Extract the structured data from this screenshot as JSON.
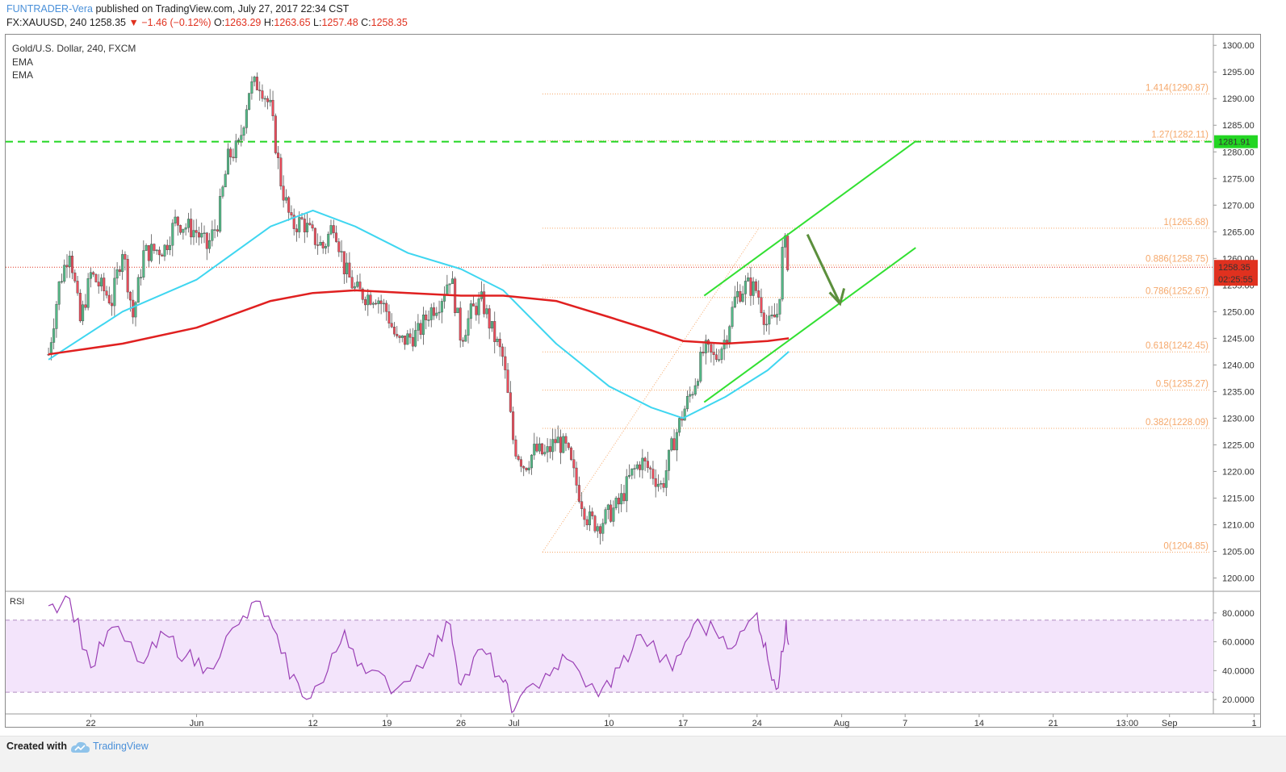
{
  "header": {
    "publisher": "FUNTRADER-Vera",
    "published_text": "published on TradingView.com, July 27, 2017 22:34 CST",
    "symbol": "FX:XAUUSD, 240",
    "last": "1258.35",
    "change": "▼ −1.46 (−0.12%)",
    "o_label": "O:",
    "o_value": "1263.29",
    "h_label": "H:",
    "h_value": "1263.65",
    "l_label": "L:",
    "l_value": "1257.48",
    "c_label": "C:",
    "c_value": "1258.35"
  },
  "legend": {
    "title": "Gold/U.S. Dollar, 240, FXCM",
    "ema1": "EMA",
    "ema2": "EMA"
  },
  "rsi_label": "RSI",
  "footer": {
    "created_with": "Created with",
    "brand": "TradingView"
  },
  "colors": {
    "up": "#53b987",
    "down": "#eb4d5c",
    "ema_fast": "#3fd6f0",
    "ema_slow": "#e02020",
    "channel": "#32e032",
    "resistance": "#22d622",
    "fib": "#f5a86b",
    "arrow": "#5b8f3c",
    "rsi": "#9a3fb5",
    "rsi_band": "#f3e4fb",
    "last_price_bg": "#e0311f"
  },
  "chart_data": [
    {
      "type": "candlestick",
      "title": "Gold/U.S. Dollar, 240, FXCM",
      "ylim": [
        1197.5,
        1302
      ],
      "y_ticks": [
        1200,
        1205,
        1210,
        1215,
        1220,
        1225,
        1230,
        1235,
        1240,
        1245,
        1250,
        1255,
        1260,
        1265,
        1270,
        1275,
        1280,
        1285,
        1290,
        1295,
        1300
      ],
      "x_tick_labels": [
        "22",
        "Jun",
        "12",
        "19",
        "26",
        "Jul",
        "10",
        "17",
        "24",
        "Aug",
        "7",
        "14",
        "21",
        "13:00",
        "Sep",
        "1"
      ],
      "price_path": [
        {
          "date": "2017-05-18",
          "close": 1242
        },
        {
          "date": "2017-05-19",
          "close": 1255
        },
        {
          "date": "2017-05-20",
          "close": 1262
        },
        {
          "date": "2017-05-21",
          "close": 1248
        },
        {
          "date": "2017-05-22",
          "close": 1257
        },
        {
          "date": "2017-05-24",
          "close": 1252
        },
        {
          "date": "2017-05-25",
          "close": 1262
        },
        {
          "date": "2017-05-26",
          "close": 1249
        },
        {
          "date": "2017-05-27",
          "close": 1261
        },
        {
          "date": "2017-05-29",
          "close": 1262
        },
        {
          "date": "2017-05-30",
          "close": 1267
        },
        {
          "date": "2017-06-01",
          "close": 1265
        },
        {
          "date": "2017-06-02",
          "close": 1262
        },
        {
          "date": "2017-06-03",
          "close": 1267
        },
        {
          "date": "2017-06-04",
          "close": 1279
        },
        {
          "date": "2017-06-05",
          "close": 1281
        },
        {
          "date": "2017-06-06",
          "close": 1292
        },
        {
          "date": "2017-06-07",
          "close": 1293
        },
        {
          "date": "2017-06-08",
          "close": 1288
        },
        {
          "date": "2017-06-09",
          "close": 1274
        },
        {
          "date": "2017-06-10",
          "close": 1266
        },
        {
          "date": "2017-06-11",
          "close": 1267
        },
        {
          "date": "2017-06-12",
          "close": 1264
        },
        {
          "date": "2017-06-13",
          "close": 1262
        },
        {
          "date": "2017-06-14",
          "close": 1267
        },
        {
          "date": "2017-06-15",
          "close": 1258
        },
        {
          "date": "2017-06-16",
          "close": 1254
        },
        {
          "date": "2017-06-17",
          "close": 1253
        },
        {
          "date": "2017-06-18",
          "close": 1253
        },
        {
          "date": "2017-06-19",
          "close": 1250
        },
        {
          "date": "2017-06-20",
          "close": 1244
        },
        {
          "date": "2017-06-21",
          "close": 1245
        },
        {
          "date": "2017-06-22",
          "close": 1246
        },
        {
          "date": "2017-06-23",
          "close": 1250
        },
        {
          "date": "2017-06-24",
          "close": 1252
        },
        {
          "date": "2017-06-25",
          "close": 1257
        },
        {
          "date": "2017-06-26",
          "close": 1245
        },
        {
          "date": "2017-06-27",
          "close": 1250
        },
        {
          "date": "2017-06-28",
          "close": 1252
        },
        {
          "date": "2017-06-29",
          "close": 1246
        },
        {
          "date": "2017-06-30",
          "close": 1241
        },
        {
          "date": "2017-07-01",
          "close": 1225
        },
        {
          "date": "2017-07-02",
          "close": 1221
        },
        {
          "date": "2017-07-03",
          "close": 1224
        },
        {
          "date": "2017-07-04",
          "close": 1223
        },
        {
          "date": "2017-07-05",
          "close": 1226
        },
        {
          "date": "2017-07-06",
          "close": 1224
        },
        {
          "date": "2017-07-07",
          "close": 1217
        },
        {
          "date": "2017-07-08",
          "close": 1211
        },
        {
          "date": "2017-07-09",
          "close": 1210
        },
        {
          "date": "2017-07-10",
          "close": 1212
        },
        {
          "date": "2017-07-11",
          "close": 1214
        },
        {
          "date": "2017-07-12",
          "close": 1219
        },
        {
          "date": "2017-07-13",
          "close": 1222
        },
        {
          "date": "2017-07-14",
          "close": 1220
        },
        {
          "date": "2017-07-15",
          "close": 1217
        },
        {
          "date": "2017-07-16",
          "close": 1225
        },
        {
          "date": "2017-07-17",
          "close": 1231
        },
        {
          "date": "2017-07-18",
          "close": 1236
        },
        {
          "date": "2017-07-19",
          "close": 1243
        },
        {
          "date": "2017-07-20",
          "close": 1241
        },
        {
          "date": "2017-07-21",
          "close": 1245
        },
        {
          "date": "2017-07-22",
          "close": 1253
        },
        {
          "date": "2017-07-23",
          "close": 1255
        },
        {
          "date": "2017-07-24",
          "close": 1254
        },
        {
          "date": "2017-07-25",
          "close": 1247
        },
        {
          "date": "2017-07-26",
          "close": 1250
        },
        {
          "date": "2017-07-26T12",
          "close": 1264
        },
        {
          "date": "2017-07-27",
          "close": 1258.35
        }
      ],
      "ema_fast_path": [
        {
          "date": "2017-05-18",
          "value": 1241
        },
        {
          "date": "2017-05-25",
          "value": 1250
        },
        {
          "date": "2017-06-01",
          "value": 1256
        },
        {
          "date": "2017-06-08",
          "value": 1266
        },
        {
          "date": "2017-06-12",
          "value": 1269
        },
        {
          "date": "2017-06-16",
          "value": 1266
        },
        {
          "date": "2017-06-21",
          "value": 1261
        },
        {
          "date": "2017-06-26",
          "value": 1258
        },
        {
          "date": "2017-06-30",
          "value": 1254
        },
        {
          "date": "2017-07-05",
          "value": 1244
        },
        {
          "date": "2017-07-10",
          "value": 1236
        },
        {
          "date": "2017-07-14",
          "value": 1232
        },
        {
          "date": "2017-07-17",
          "value": 1230
        },
        {
          "date": "2017-07-21",
          "value": 1234
        },
        {
          "date": "2017-07-25",
          "value": 1239
        },
        {
          "date": "2017-07-27",
          "value": 1242.5
        }
      ],
      "ema_slow_path": [
        {
          "date": "2017-05-18",
          "value": 1242
        },
        {
          "date": "2017-05-25",
          "value": 1244
        },
        {
          "date": "2017-06-01",
          "value": 1247
        },
        {
          "date": "2017-06-08",
          "value": 1252
        },
        {
          "date": "2017-06-12",
          "value": 1253.5
        },
        {
          "date": "2017-06-16",
          "value": 1254
        },
        {
          "date": "2017-06-21",
          "value": 1253.5
        },
        {
          "date": "2017-06-26",
          "value": 1253
        },
        {
          "date": "2017-06-30",
          "value": 1253
        },
        {
          "date": "2017-07-05",
          "value": 1252
        },
        {
          "date": "2017-07-10",
          "value": 1249
        },
        {
          "date": "2017-07-14",
          "value": 1246.5
        },
        {
          "date": "2017-07-17",
          "value": 1244.5
        },
        {
          "date": "2017-07-21",
          "value": 1244
        },
        {
          "date": "2017-07-25",
          "value": 1244.5
        },
        {
          "date": "2017-07-27",
          "value": 1245
        }
      ],
      "fibonacci": [
        {
          "label": "1.414(1290.87)",
          "value": 1290.87
        },
        {
          "label": "1.27(1282.11)",
          "value": 1282.11
        },
        {
          "label": "1(1265.68)",
          "value": 1265.68
        },
        {
          "label": "0.886(1258.75)",
          "value": 1258.75
        },
        {
          "label": "0.786(1252.67)",
          "value": 1252.67
        },
        {
          "label": "0.618(1242.45)",
          "value": 1242.45
        },
        {
          "label": "0.5(1235.27)",
          "value": 1235.27
        },
        {
          "label": "0.382(1228.09)",
          "value": 1228.09
        },
        {
          "label": "0(1204.85)",
          "value": 1204.85
        }
      ],
      "resistance_level": {
        "label": "1281.91",
        "value": 1281.91
      },
      "last_price": {
        "label": "1258.35",
        "value": 1258.35,
        "countdown": "02:25:55"
      },
      "channel": {
        "upper": [
          {
            "date": "2017-07-19",
            "value": 1253
          },
          {
            "date": "2017-08-08",
            "value": 1282
          }
        ],
        "lower": [
          {
            "date": "2017-07-19",
            "value": 1233
          },
          {
            "date": "2017-08-08",
            "value": 1262
          }
        ]
      }
    },
    {
      "type": "line",
      "title": "RSI",
      "ylim": [
        10,
        95
      ],
      "y_ticks": [
        20,
        40,
        60,
        80
      ],
      "y_tick_labels": [
        "20.0000",
        "40.0000",
        "60.0000",
        "80.0000"
      ],
      "overbought": 75,
      "oversold": 25,
      "values_path": [
        {
          "date": "2017-05-18",
          "value": 85
        },
        {
          "date": "2017-05-20",
          "value": 90
        },
        {
          "date": "2017-05-22",
          "value": 42
        },
        {
          "date": "2017-05-24",
          "value": 70
        },
        {
          "date": "2017-05-27",
          "value": 45
        },
        {
          "date": "2017-05-29",
          "value": 65
        },
        {
          "date": "2017-05-31",
          "value": 50
        },
        {
          "date": "2017-06-02",
          "value": 42
        },
        {
          "date": "2017-06-05",
          "value": 72
        },
        {
          "date": "2017-06-07",
          "value": 88
        },
        {
          "date": "2017-06-09",
          "value": 52
        },
        {
          "date": "2017-06-11",
          "value": 22
        },
        {
          "date": "2017-06-13",
          "value": 32
        },
        {
          "date": "2017-06-15",
          "value": 68
        },
        {
          "date": "2017-06-17",
          "value": 38
        },
        {
          "date": "2017-06-20",
          "value": 28
        },
        {
          "date": "2017-06-23",
          "value": 52
        },
        {
          "date": "2017-06-25",
          "value": 72
        },
        {
          "date": "2017-06-26",
          "value": 30
        },
        {
          "date": "2017-06-28",
          "value": 55
        },
        {
          "date": "2017-06-30",
          "value": 32
        },
        {
          "date": "2017-07-01",
          "value": 12
        },
        {
          "date": "2017-07-04",
          "value": 38
        },
        {
          "date": "2017-07-06",
          "value": 48
        },
        {
          "date": "2017-07-09",
          "value": 22
        },
        {
          "date": "2017-07-11",
          "value": 42
        },
        {
          "date": "2017-07-13",
          "value": 65
        },
        {
          "date": "2017-07-16",
          "value": 40
        },
        {
          "date": "2017-07-18",
          "value": 72
        },
        {
          "date": "2017-07-20",
          "value": 68
        },
        {
          "date": "2017-07-22",
          "value": 58
        },
        {
          "date": "2017-07-24",
          "value": 80
        },
        {
          "date": "2017-07-25",
          "value": 48
        },
        {
          "date": "2017-07-26",
          "value": 28
        },
        {
          "date": "2017-07-26T18",
          "value": 75
        },
        {
          "date": "2017-07-27",
          "value": 58
        }
      ]
    }
  ]
}
